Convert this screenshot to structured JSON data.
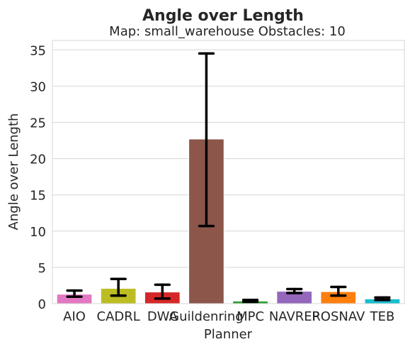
{
  "chart_data": {
    "type": "bar",
    "title": "Angle over Length",
    "subtitle": "Map: small_warehouse Obstacles: 10",
    "xlabel": "Planner",
    "ylabel": "Angle over Length",
    "ylim": [
      0,
      36.3
    ],
    "yticks": [
      0,
      5,
      10,
      15,
      20,
      25,
      30,
      35
    ],
    "grid": true,
    "categories": [
      "AIO",
      "CADRL",
      "DWA",
      "Guildenring",
      "MPC",
      "NAVREP",
      "ROSNAV",
      "TEB"
    ],
    "values": [
      1.3,
      2.1,
      1.6,
      22.7,
      0.35,
      1.7,
      1.65,
      0.65
    ],
    "error_low": [
      0.95,
      1.1,
      0.7,
      10.7,
      0.25,
      1.45,
      1.1,
      0.5
    ],
    "error_high": [
      1.8,
      3.4,
      2.6,
      34.5,
      0.5,
      2.0,
      2.3,
      0.85
    ],
    "colors": [
      "#e377c2",
      "#bcbd22",
      "#d62728",
      "#8c564b",
      "#2ca02c",
      "#9467bd",
      "#ff7f0e",
      "#17becf"
    ]
  }
}
